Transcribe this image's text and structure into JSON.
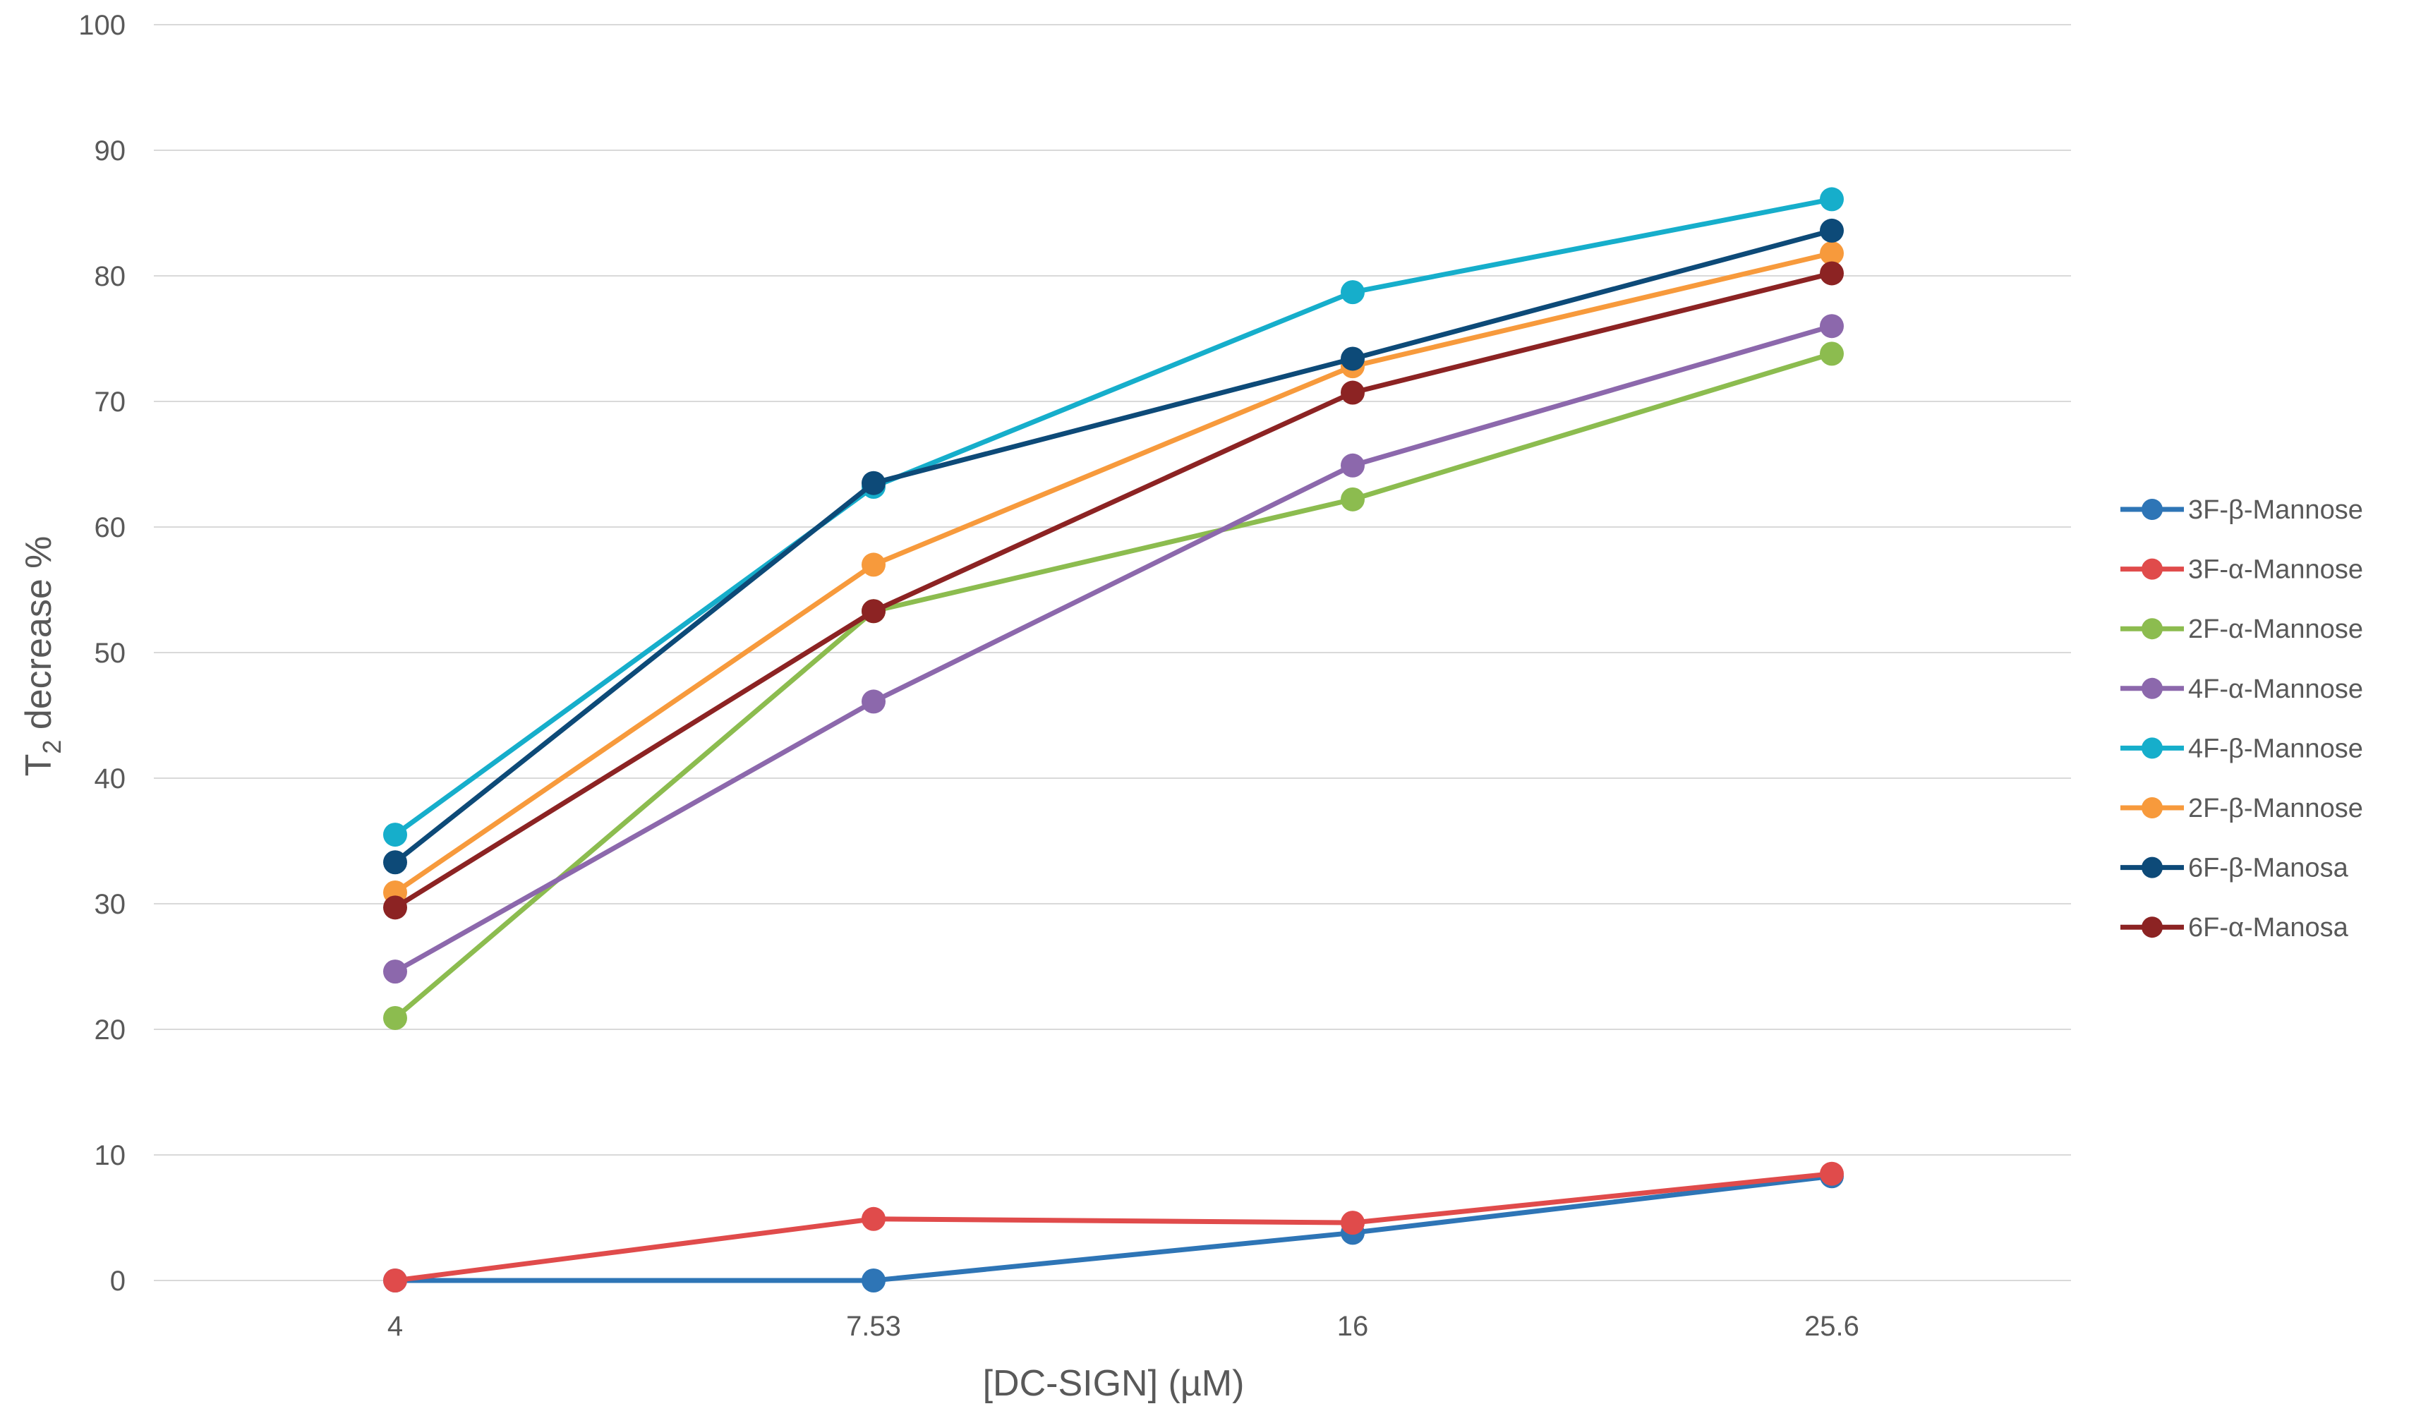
{
  "chart_data": {
    "type": "line",
    "title": "",
    "xlabel": "[DC-SIGN] (µM)",
    "ylabel": {
      "main": "T",
      "subscript": "2",
      "rest": " decrease %"
    },
    "categories": [
      "4",
      "7.53",
      "16",
      "25.6"
    ],
    "ylim": [
      0,
      100
    ],
    "yticks": [
      "0",
      "10",
      "20",
      "30",
      "40",
      "50",
      "60",
      "70",
      "80",
      "90",
      "100"
    ],
    "grid": true,
    "legend_position": "right",
    "series": [
      {
        "name": "3F-β-Mannose",
        "color": "#2e75b6",
        "values": [
          0,
          0,
          3.8,
          8.3
        ]
      },
      {
        "name": "3F-α-Mannose",
        "color": "#e04b4b",
        "values": [
          0,
          4.9,
          4.6,
          8.5
        ]
      },
      {
        "name": "2F-α-Mannose",
        "color": "#8cbc4f",
        "values": [
          20.9,
          53.3,
          62.2,
          73.8
        ]
      },
      {
        "name": "4F-α-Mannose",
        "color": "#8c68ac",
        "values": [
          24.6,
          46.1,
          64.9,
          76.0
        ]
      },
      {
        "name": "4F-β-Mannose",
        "color": "#16aecb",
        "values": [
          35.5,
          63.2,
          78.7,
          86.1
        ]
      },
      {
        "name": "2F-β-Mannose",
        "color": "#f79a3c",
        "values": [
          30.9,
          57.0,
          72.8,
          81.8
        ]
      },
      {
        "name": "6F-β-Manosa",
        "color": "#0d4a78",
        "values": [
          33.3,
          63.5,
          73.4,
          83.6
        ]
      },
      {
        "name": "6F-α-Manosa",
        "color": "#8c2323",
        "values": [
          29.7,
          53.3,
          70.7,
          80.2
        ]
      }
    ]
  }
}
